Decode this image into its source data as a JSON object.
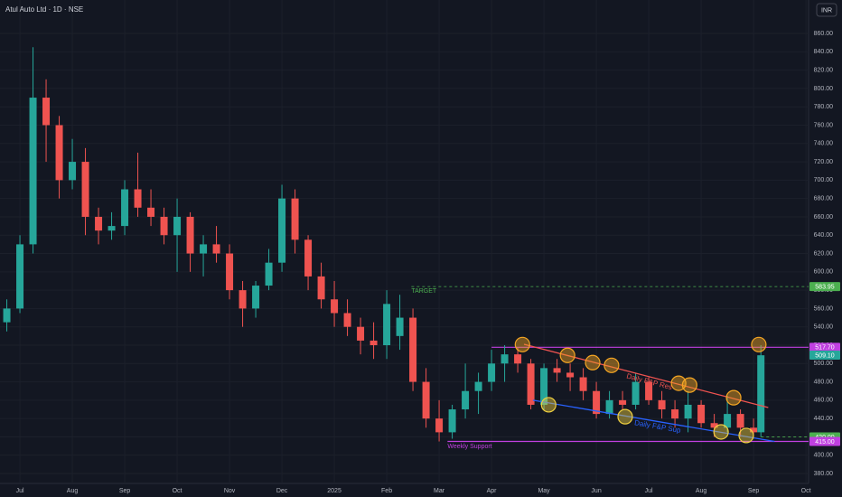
{
  "chart_data": {
    "type": "candlestick",
    "title": "Atul Auto Ltd · 1D · NSE",
    "currency": "INR",
    "up_color": "#26a69a",
    "down_color": "#ef5350",
    "xlim": [
      -0.38,
      15.05
    ],
    "xticks": [
      {
        "value": 0,
        "label": "Jul"
      },
      {
        "value": 1,
        "label": "Aug"
      },
      {
        "value": 2,
        "label": "Sep"
      },
      {
        "value": 3,
        "label": "Oct"
      },
      {
        "value": 4,
        "label": "Nov"
      },
      {
        "value": 5,
        "label": "Dec"
      },
      {
        "value": 6,
        "label": "2025"
      },
      {
        "value": 7,
        "label": "Feb"
      },
      {
        "value": 8,
        "label": "Mar"
      },
      {
        "value": 9,
        "label": "Apr"
      },
      {
        "value": 10,
        "label": "May"
      },
      {
        "value": 11,
        "label": "Jun"
      },
      {
        "value": 12,
        "label": "Jul"
      },
      {
        "value": 13,
        "label": "Aug"
      },
      {
        "value": 14,
        "label": "Sep"
      },
      {
        "value": 15,
        "label": "Oct"
      }
    ],
    "ylim": [
      369.2,
      896.5
    ],
    "yticks": [
      {
        "value": 380,
        "label": "380.00"
      },
      {
        "value": 400,
        "label": "400.00"
      },
      {
        "value": 420,
        "label": "420.00"
      },
      {
        "value": 440,
        "label": "440.00"
      },
      {
        "value": 460,
        "label": "460.00"
      },
      {
        "value": 480,
        "label": "480.00"
      },
      {
        "value": 500,
        "label": "500.00"
      },
      {
        "value": 520,
        "label": "520.00"
      },
      {
        "value": 540,
        "label": "540.00"
      },
      {
        "value": 560,
        "label": "560.00"
      },
      {
        "value": 580,
        "label": "580.00"
      },
      {
        "value": 600,
        "label": "600.00"
      },
      {
        "value": 620,
        "label": "620.00"
      },
      {
        "value": 640,
        "label": "640.00"
      },
      {
        "value": 660,
        "label": "660.00"
      },
      {
        "value": 680,
        "label": "680.00"
      },
      {
        "value": 700,
        "label": "700.00"
      },
      {
        "value": 720,
        "label": "720.00"
      },
      {
        "value": 740,
        "label": "740.00"
      },
      {
        "value": 760,
        "label": "760.00"
      },
      {
        "value": 780,
        "label": "780.00"
      },
      {
        "value": 800,
        "label": "800.00"
      },
      {
        "value": 820,
        "label": "820.00"
      },
      {
        "value": 840,
        "label": "840.00"
      },
      {
        "value": 860,
        "label": "860.00"
      }
    ],
    "x": [
      -0.25,
      0,
      0.25,
      0.5,
      0.75,
      1,
      1.25,
      1.5,
      1.75,
      2,
      2.25,
      2.5,
      2.75,
      3,
      3.25,
      3.5,
      3.75,
      4,
      4.25,
      4.5,
      4.75,
      5,
      5.25,
      5.5,
      5.75,
      6,
      6.25,
      6.5,
      6.75,
      7,
      7.25,
      7.5,
      7.75,
      8,
      8.25,
      8.5,
      8.75,
      9,
      9.25,
      9.5,
      9.75,
      10,
      10.25,
      10.5,
      10.75,
      11,
      11.25,
      11.5,
      11.75,
      12,
      12.25,
      12.5,
      12.75,
      13,
      13.25,
      13.5,
      13.75,
      14,
      14.14
    ],
    "open": [
      545,
      560,
      630,
      790,
      760,
      700,
      720,
      660,
      645,
      650,
      690,
      670,
      660,
      640,
      660,
      620,
      630,
      620,
      580,
      560,
      585,
      610,
      680,
      635,
      595,
      570,
      555,
      540,
      525,
      520,
      530,
      550,
      480,
      440,
      425,
      450,
      470,
      480,
      500,
      510,
      500,
      455,
      495,
      490,
      485,
      470,
      445,
      460,
      455,
      480,
      460,
      450,
      440,
      455,
      435,
      430,
      445,
      430,
      425
    ],
    "high": [
      570,
      640,
      845,
      810,
      770,
      745,
      735,
      670,
      665,
      700,
      730,
      690,
      670,
      680,
      665,
      640,
      650,
      630,
      590,
      590,
      625,
      695,
      690,
      640,
      610,
      590,
      570,
      550,
      545,
      580,
      575,
      560,
      495,
      460,
      455,
      500,
      490,
      515,
      520,
      517,
      505,
      500,
      505,
      500,
      495,
      480,
      470,
      470,
      490,
      485,
      470,
      460,
      470,
      460,
      445,
      465,
      450,
      440,
      520
    ],
    "low": [
      535,
      555,
      620,
      720,
      680,
      690,
      640,
      630,
      635,
      640,
      660,
      650,
      630,
      600,
      600,
      595,
      610,
      570,
      540,
      550,
      580,
      600,
      620,
      580,
      560,
      540,
      530,
      510,
      505,
      505,
      515,
      470,
      430,
      415,
      418,
      440,
      445,
      470,
      480,
      490,
      450,
      450,
      480,
      470,
      460,
      440,
      440,
      450,
      450,
      455,
      440,
      430,
      425,
      430,
      420,
      425,
      420,
      418,
      420
    ],
    "close": [
      560,
      630,
      790,
      760,
      700,
      720,
      660,
      645,
      650,
      690,
      670,
      660,
      640,
      660,
      620,
      630,
      620,
      580,
      560,
      585,
      610,
      680,
      635,
      595,
      570,
      555,
      540,
      525,
      520,
      565,
      550,
      480,
      440,
      425,
      450,
      470,
      480,
      500,
      510,
      500,
      455,
      495,
      490,
      485,
      470,
      445,
      460,
      455,
      480,
      460,
      450,
      440,
      455,
      435,
      430,
      445,
      430,
      425,
      509
    ],
    "levels": [
      {
        "value": 583.95,
        "label": "583.95",
        "color": "#4caf50",
        "style": "dashed",
        "from": 7.47
      },
      {
        "value": 517.7,
        "label": "517.70",
        "color": "#c040e0",
        "style": "solid",
        "from": 9.0
      },
      {
        "value": 509.1,
        "label": "509.10",
        "color": "#26a69a",
        "style": "none",
        "from": 14.14
      },
      {
        "value": 420,
        "label": "420.00",
        "color": "#4caf50",
        "style": "dashed",
        "from": 14.14
      },
      {
        "value": 415,
        "label": "415.00",
        "color": "#c040e0",
        "style": "solid",
        "from": 8.16
      }
    ],
    "trendlines": [
      {
        "name": "Daily F&P Res",
        "color": "#ef5350",
        "x": [
          9.62,
          14.28
        ],
        "y": [
          521,
          452
        ]
      },
      {
        "name": "Daily F&P Sup",
        "color": "#2962ff",
        "x": [
          9.79,
          14.4
        ],
        "y": [
          460,
          415
        ]
      }
    ],
    "annotations": [
      {
        "text": "TARGET",
        "x": 7.47,
        "y": 579,
        "color": "#4caf50"
      },
      {
        "text": "Weekly Support",
        "x": 8.16,
        "y": 409.5,
        "color": "#c040e0"
      }
    ],
    "markers": [
      {
        "color": "#f5a623",
        "x": [
          9.59,
          10.45,
          10.93,
          11.29,
          12.57,
          12.78,
          13.62,
          14.1
        ],
        "y": [
          520.7,
          508.9,
          501,
          498,
          478.5,
          476.5,
          462.7,
          520.7
        ]
      },
      {
        "color": "#f0d040",
        "x": [
          10.09,
          11.55,
          13.38,
          13.86
        ],
        "y": [
          455,
          442,
          425.4,
          421.5
        ]
      }
    ]
  }
}
